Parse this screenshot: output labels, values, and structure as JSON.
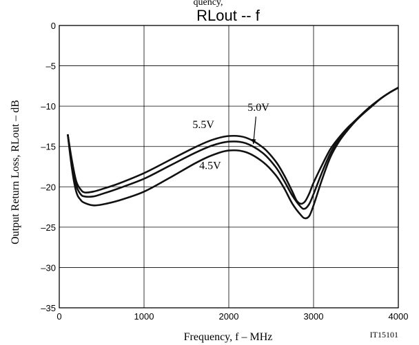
{
  "chart_data": {
    "type": "line",
    "title": "RLout  --  f",
    "top_text": "quency,",
    "xlabel": "Frequency, f  –  MHz",
    "ylabel": "Output Return Loss, RLout  –  dB",
    "figure_id": "IT15101",
    "xlim": [
      0,
      4000
    ],
    "ylim": [
      -35,
      0
    ],
    "x_ticks": [
      0,
      1000,
      2000,
      3000,
      4000
    ],
    "x_tick_labels": [
      "0",
      "1000",
      "2000",
      "3000",
      "4000"
    ],
    "y_ticks": [
      0,
      -5,
      -10,
      -15,
      -20,
      -25,
      -30,
      -35
    ],
    "y_tick_labels": [
      "0",
      "–5",
      "–10",
      "–15",
      "–20",
      "–25",
      "–30",
      "–35"
    ],
    "grid": true,
    "series": [
      {
        "name": "5.5V",
        "x": [
          100,
          150,
          200,
          250,
          300,
          400,
          500,
          700,
          1000,
          1300,
          1600,
          1800,
          2000,
          2200,
          2400,
          2550,
          2650,
          2750,
          2800,
          2850,
          2900,
          2950,
          3000,
          3100,
          3200,
          3300,
          3400,
          3500,
          3600,
          3700,
          3800,
          3900,
          4000
        ],
        "y": [
          -13.5,
          -16.8,
          -19.3,
          -20.3,
          -20.7,
          -20.6,
          -20.3,
          -19.6,
          -18.3,
          -16.7,
          -15.1,
          -14.2,
          -13.7,
          -13.9,
          -15.1,
          -16.8,
          -18.5,
          -20.6,
          -21.7,
          -22.1,
          -21.8,
          -20.8,
          -19.5,
          -17.3,
          -15.3,
          -13.9,
          -12.7,
          -11.7,
          -10.7,
          -9.8,
          -9.0,
          -8.3,
          -7.7
        ]
      },
      {
        "name": "5.0V",
        "x": [
          100,
          150,
          200,
          250,
          300,
          400,
          500,
          700,
          1000,
          1300,
          1600,
          1800,
          2000,
          2200,
          2400,
          2550,
          2650,
          2750,
          2850,
          2900,
          2950,
          3000,
          3100,
          3200,
          3300,
          3400,
          3500,
          3600,
          3700,
          3800,
          3900,
          4000
        ],
        "y": [
          -13.5,
          -17.2,
          -19.8,
          -20.9,
          -21.2,
          -21.2,
          -20.9,
          -20.2,
          -19.0,
          -17.4,
          -15.8,
          -14.9,
          -14.4,
          -14.6,
          -15.8,
          -17.5,
          -19.2,
          -21.1,
          -22.5,
          -22.7,
          -22.1,
          -20.9,
          -18.2,
          -15.8,
          -14.1,
          -12.8,
          -11.7,
          -10.7,
          -9.8,
          -9.0,
          -8.3,
          -7.7
        ]
      },
      {
        "name": "4.5V",
        "x": [
          100,
          150,
          200,
          250,
          300,
          400,
          500,
          700,
          1000,
          1300,
          1600,
          1800,
          2000,
          2200,
          2400,
          2550,
          2650,
          2750,
          2850,
          2900,
          2950,
          3000,
          3100,
          3200,
          3300,
          3400,
          3500,
          3600,
          3700,
          3800,
          3900,
          4000
        ],
        "y": [
          -13.5,
          -17.8,
          -20.6,
          -21.6,
          -22.0,
          -22.3,
          -22.2,
          -21.7,
          -20.6,
          -18.9,
          -17.1,
          -16.1,
          -15.5,
          -15.7,
          -16.9,
          -18.5,
          -20.1,
          -22.1,
          -23.5,
          -23.9,
          -23.6,
          -22.3,
          -19.1,
          -16.3,
          -14.4,
          -13.0,
          -11.8,
          -10.8,
          -9.9,
          -9.0,
          -8.3,
          -7.7
        ]
      }
    ],
    "annotations": [
      {
        "text": "5.5V",
        "x": 1700,
        "y": -12.7
      },
      {
        "text": "5.0V",
        "x": 2350,
        "y": -10.6
      },
      {
        "text": "4.5V",
        "x": 1780,
        "y": -17.8
      }
    ],
    "arrow": {
      "from": [
        2320,
        -11.3
      ],
      "to": [
        2290,
        -14.7
      ]
    }
  }
}
